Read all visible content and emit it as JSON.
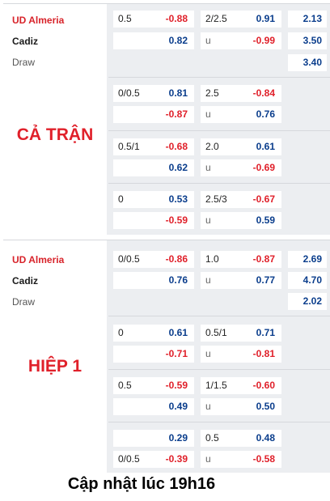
{
  "full_match": {
    "label": "CẢ TRẬN",
    "home_team": "UD Almeria",
    "away_team": "Cadiz",
    "draw_label": "Draw",
    "x12": [
      "2.13",
      "3.50",
      "3.40"
    ],
    "lines": [
      {
        "hcap": "0.5",
        "hcap_home": "-0.88",
        "hcap_away": "0.82",
        "ou": "2/2.5",
        "ou_over": "0.91",
        "ou_under_label": "u",
        "ou_under": "-0.99"
      },
      {
        "hcap": "0/0.5",
        "hcap_home": "0.81",
        "hcap_away": "-0.87",
        "ou": "2.5",
        "ou_over": "-0.84",
        "ou_under_label": "u",
        "ou_under": "0.76"
      },
      {
        "hcap": "0.5/1",
        "hcap_home": "-0.68",
        "hcap_away": "0.62",
        "ou": "2.0",
        "ou_over": "0.61",
        "ou_under_label": "u",
        "ou_under": "-0.69"
      },
      {
        "hcap": "0",
        "hcap_home": "0.53",
        "hcap_away": "-0.59",
        "ou": "2.5/3",
        "ou_over": "-0.67",
        "ou_under_label": "u",
        "ou_under": "0.59"
      }
    ]
  },
  "first_half": {
    "label": "HIỆP 1",
    "home_team": "UD Almeria",
    "away_team": "Cadiz",
    "draw_label": "Draw",
    "x12": [
      "2.69",
      "4.70",
      "2.02"
    ],
    "lines": [
      {
        "hcap": "0/0.5",
        "hcap_home": "-0.86",
        "hcap_away": "0.76",
        "ou": "1.0",
        "ou_over": "-0.87",
        "ou_under_label": "u",
        "ou_under": "0.77"
      },
      {
        "hcap": "0",
        "hcap_home": "0.61",
        "hcap_away": "-0.71",
        "ou": "0.5/1",
        "ou_over": "0.71",
        "ou_under_label": "u",
        "ou_under": "-0.81"
      },
      {
        "hcap": "0.5",
        "hcap_home": "-0.59",
        "hcap_away": "0.49",
        "ou": "1/1.5",
        "ou_over": "-0.60",
        "ou_under_label": "u",
        "ou_under": "0.50"
      },
      {
        "hcap_home_label": "",
        "hcap_away_label": "0/0.5",
        "hcap_home": "0.29",
        "hcap_away": "-0.39",
        "ou": "0.5",
        "ou_over": "0.48",
        "ou_under_label": "u",
        "ou_under": "-0.58"
      }
    ]
  },
  "footer": "Cập nhật lúc 19h16",
  "colors": {
    "negative": "#e0202a",
    "positive": "#0a3d8c",
    "home_team": "#d8232a"
  }
}
